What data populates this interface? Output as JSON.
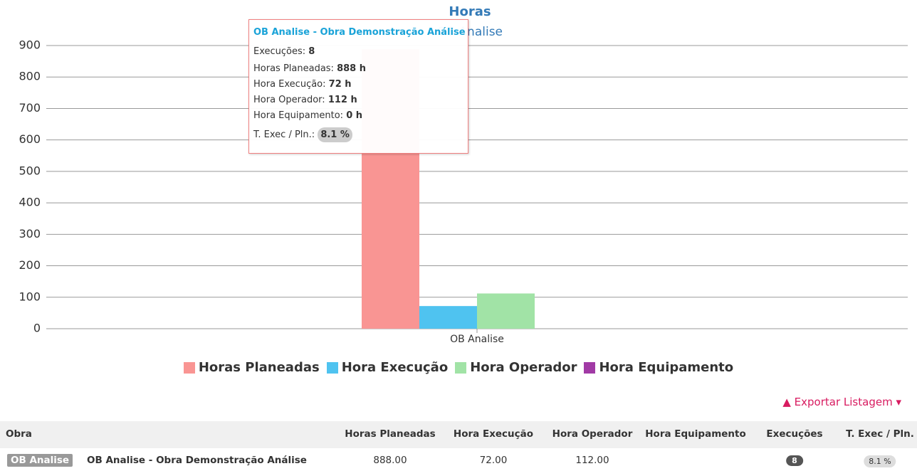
{
  "chart_data": {
    "type": "bar",
    "title": "Horas",
    "subtitle": "OB Analise",
    "categories": [
      "OB Analise"
    ],
    "series": [
      {
        "name": "Horas Planeadas",
        "color": "#f99593",
        "values": [
          888
        ]
      },
      {
        "name": "Hora Execução",
        "color": "#4fc3f0",
        "values": [
          72
        ]
      },
      {
        "name": "Hora Operador",
        "color": "#a1e3a6",
        "values": [
          112
        ]
      },
      {
        "name": "Hora Equipamento",
        "color": "#a13aa5",
        "values": [
          0
        ]
      }
    ],
    "ylim": [
      0,
      900
    ],
    "yticks": [
      0,
      100,
      200,
      300,
      400,
      500,
      600,
      700,
      800,
      900
    ],
    "grid": true
  },
  "tooltip": {
    "title": "OB Analise - Obra Demonstração Análise",
    "rows": [
      {
        "label": "Execuções:",
        "value": "8"
      },
      {
        "label": "Horas Planeadas:",
        "value": "888 h"
      },
      {
        "label": "Hora Execução:",
        "value": "72 h"
      },
      {
        "label": "Hora Operador:",
        "value": "112 h"
      },
      {
        "label": "Hora Equipamento:",
        "value": "0 h"
      },
      {
        "label": "T. Exec / Pln.:",
        "value": "8.1 %"
      }
    ]
  },
  "export": "Exportar Listagem",
  "table": {
    "headers": [
      "Obra",
      "Horas Planeadas",
      "Hora Execução",
      "Hora Operador",
      "Hora Equipamento",
      "Execuções",
      "T. Exec / Pln."
    ],
    "rows": [
      {
        "code": "OB Analise",
        "name": "OB Analise - Obra Demonstração Análise",
        "horas_planeadas": "888.00",
        "hora_execucao": "72.00",
        "hora_operador": "112.00",
        "execucoes": "8",
        "t_exec": "8.1 %"
      }
    ]
  }
}
